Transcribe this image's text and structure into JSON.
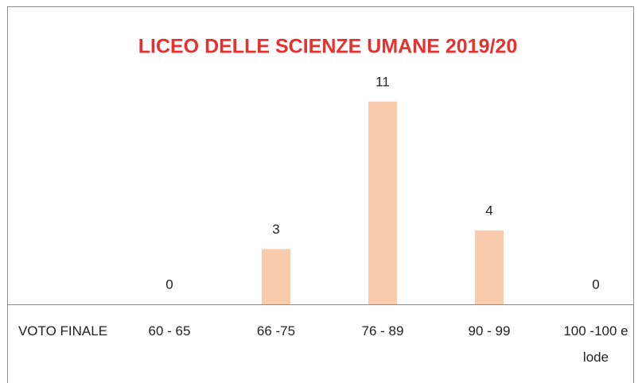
{
  "chart_data": {
    "type": "bar",
    "title": "LICEO DELLE SCIENZE UMANE 2019/20",
    "categories": [
      "VOTO FINALE",
      "60 - 65",
      "66 -75",
      "76 - 89",
      "90 - 99",
      "100 -100 e lode"
    ],
    "values": [
      null,
      0,
      3,
      11,
      4,
      0
    ],
    "color": "#f8cbad",
    "title_color": "#e8302f"
  }
}
